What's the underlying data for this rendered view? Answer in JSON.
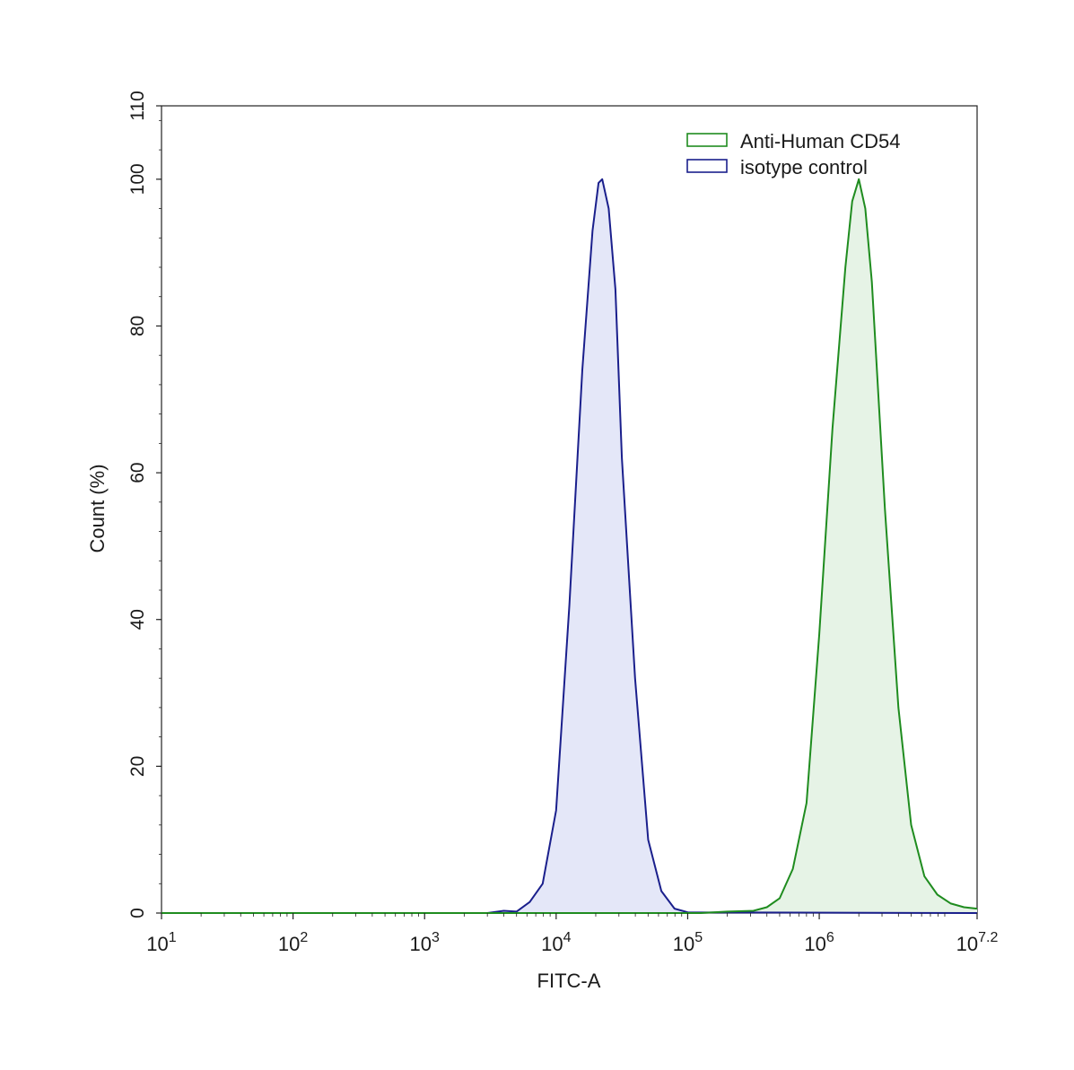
{
  "chart_data": {
    "type": "area",
    "title": "",
    "xlabel": "FITC-A",
    "ylabel": "Count  (%)",
    "x_scale": "log10",
    "xlim": [
      10,
      15848932
    ],
    "ylim": [
      0,
      110
    ],
    "grid": false,
    "legend_position": "top-right",
    "x_ticks": [
      {
        "base": "10",
        "exp": "1"
      },
      {
        "base": "10",
        "exp": "2"
      },
      {
        "base": "10",
        "exp": "3"
      },
      {
        "base": "10",
        "exp": "4"
      },
      {
        "base": "10",
        "exp": "5"
      },
      {
        "base": "10",
        "exp": "6"
      },
      {
        "base": "10",
        "exp": "7.2"
      }
    ],
    "x_tick_values": [
      10,
      100,
      1000,
      10000,
      100000,
      1000000,
      15848932
    ],
    "y_ticks": [
      "0",
      "20",
      "40",
      "60",
      "80",
      "100",
      "110"
    ],
    "y_tick_values": [
      0,
      20,
      40,
      60,
      80,
      100,
      110
    ],
    "series": [
      {
        "name": "Anti-Human CD54",
        "color": "#1f8c1f",
        "fill": "#e6f3e6",
        "points": [
          [
            10,
            0
          ],
          [
            80000,
            0
          ],
          [
            126000,
            0
          ],
          [
            200000,
            0.2
          ],
          [
            316000,
            0.3
          ],
          [
            400000,
            0.8
          ],
          [
            500000,
            2
          ],
          [
            630000,
            6
          ],
          [
            800000,
            15
          ],
          [
            1000000,
            38
          ],
          [
            1260000,
            66
          ],
          [
            1580000,
            88
          ],
          [
            1780000,
            97
          ],
          [
            2000000,
            100
          ],
          [
            2240000,
            96
          ],
          [
            2510000,
            86
          ],
          [
            3160000,
            55
          ],
          [
            4000000,
            28
          ],
          [
            5000000,
            12
          ],
          [
            6300000,
            5
          ],
          [
            7900000,
            2.5
          ],
          [
            10000000,
            1.3
          ],
          [
            12600000,
            0.8
          ],
          [
            15848932,
            0.6
          ]
        ]
      },
      {
        "name": "isotype control",
        "color": "#1a1f8c",
        "fill": "#e4e7f8",
        "points": [
          [
            10,
            0
          ],
          [
            3000,
            0
          ],
          [
            4000,
            0.3
          ],
          [
            5000,
            0.2
          ],
          [
            6300,
            1.5
          ],
          [
            7900,
            4
          ],
          [
            10000,
            14
          ],
          [
            12600,
            42
          ],
          [
            15800,
            74
          ],
          [
            18900,
            93
          ],
          [
            21000,
            99.5
          ],
          [
            22400,
            100
          ],
          [
            25100,
            96
          ],
          [
            28200,
            85
          ],
          [
            31600,
            62
          ],
          [
            39800,
            32
          ],
          [
            50100,
            10
          ],
          [
            63100,
            3
          ],
          [
            79400,
            0.6
          ],
          [
            100000,
            0.1
          ],
          [
            15848932,
            0
          ]
        ]
      }
    ]
  }
}
